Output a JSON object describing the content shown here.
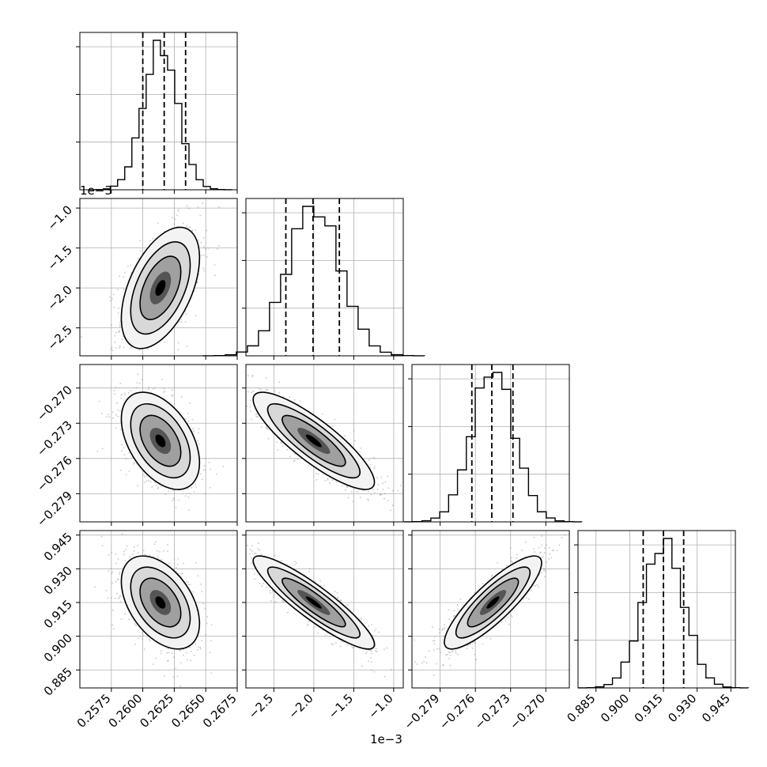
{
  "chart_data": {
    "type": "corner",
    "parameters": [
      {
        "range": [
          0.255,
          0.2675
        ],
        "ticks": [
          0.2575,
          0.26,
          0.2625,
          0.265,
          0.2675
        ],
        "tick_labels": [
          "0.2575",
          "0.2600",
          "0.2625",
          "0.2650",
          "0.2675"
        ],
        "mean": 0.2614,
        "sd": 0.00135,
        "quantiles": [
          0.26,
          0.2617,
          0.2634
        ]
      },
      {
        "range": [
          -2.85,
          -0.88
        ],
        "ticks": [
          -2.5,
          -2.0,
          -1.5,
          -1.0
        ],
        "tick_labels": [
          "−2.5",
          "−2.0",
          "−1.5",
          "−1.0"
        ],
        "offset_label": "1e−3",
        "mean": -2.0,
        "sd": 0.33,
        "quantiles": [
          -2.35,
          -2.01,
          -1.68
        ]
      },
      {
        "range": [
          -0.2814,
          -0.268
        ],
        "ticks": [
          -0.279,
          -0.276,
          -0.273,
          -0.27
        ],
        "tick_labels": [
          "−0.279",
          "−0.276",
          "−0.273",
          "−0.270"
        ],
        "mean": -0.2745,
        "sd": 0.0018,
        "quantiles": [
          -0.2763,
          -0.2746,
          -0.2728
        ]
      },
      {
        "range": [
          0.877,
          0.947
        ],
        "ticks": [
          0.885,
          0.9,
          0.915,
          0.93,
          0.945
        ],
        "tick_labels": [
          "0.885",
          "0.900",
          "0.915",
          "0.930",
          "0.945"
        ],
        "mean": 0.915,
        "sd": 0.009,
        "quantiles": [
          0.906,
          0.915,
          0.924
        ]
      }
    ],
    "correlations": [
      [
        1,
        0.5,
        -0.45,
        -0.45
      ],
      [
        0.5,
        1,
        -0.85,
        -0.9
      ],
      [
        -0.45,
        -0.85,
        1,
        0.85
      ],
      [
        -0.45,
        -0.9,
        0.85,
        1
      ]
    ],
    "marginal_y_ticks": 3,
    "grid": true,
    "contour_levels": 4
  }
}
